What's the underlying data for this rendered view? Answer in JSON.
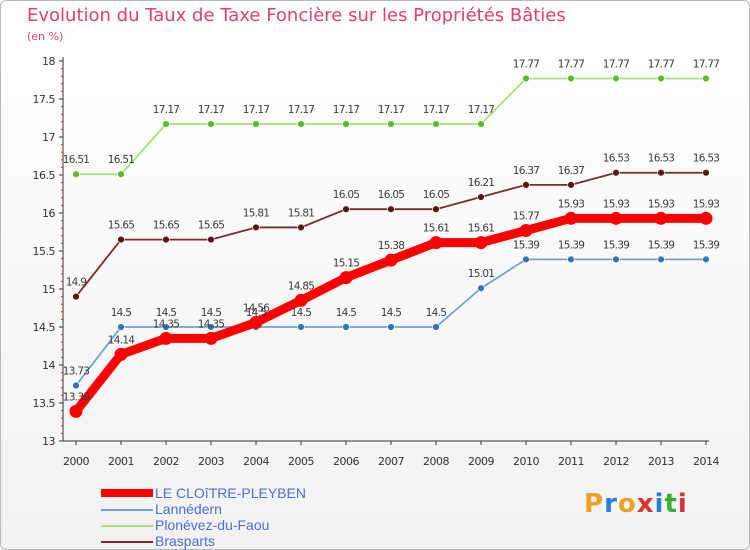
{
  "header": {
    "title": "Evolution du Taux de Taxe Foncière sur les Propriétés Bâties",
    "unit": "(en %)"
  },
  "logo": {
    "text": "Proxiti",
    "colors": [
      "#f0a020",
      "#2a7fd4",
      "#38b030",
      "#e03030"
    ]
  },
  "chart_data": {
    "type": "line",
    "title": "Evolution du Taux de Taxe Foncière sur les Propriétés Bâties",
    "ylabel": "(en %)",
    "xlabel": "",
    "ylim": [
      13,
      18
    ],
    "yticks": [
      "13",
      "13.5",
      "14",
      "14.5",
      "15",
      "15.5",
      "16",
      "16.5",
      "17",
      "17.5",
      "18"
    ],
    "categories": [
      "2000",
      "2001",
      "2002",
      "2003",
      "2004",
      "2005",
      "2006",
      "2007",
      "2008",
      "2009",
      "2010",
      "2011",
      "2012",
      "2013",
      "2014"
    ],
    "grid": false,
    "legend_position": "bottom-left",
    "series": [
      {
        "name": "LE CLOîTRE-PLEYBEN",
        "color": "#ff0000",
        "emphasis": true,
        "values": [
          13.39,
          14.14,
          14.35,
          14.35,
          14.56,
          14.85,
          15.15,
          15.38,
          15.61,
          15.61,
          15.77,
          15.93,
          15.93,
          15.93,
          15.93
        ],
        "labels": [
          "13.39",
          "14.14",
          "14.35",
          "14.35",
          "14.56",
          "14.85",
          "15.15",
          "15.38",
          "15.61",
          "15.61",
          "15.77",
          "15.93",
          "15.93",
          "15.93",
          "15.93"
        ]
      },
      {
        "name": "Lannédern",
        "color": "#6fa3d6",
        "point_color": "#2f74c0",
        "values": [
          13.73,
          14.5,
          14.5,
          14.5,
          14.5,
          14.5,
          14.5,
          14.5,
          14.5,
          15.01,
          15.39,
          15.39,
          15.39,
          15.39,
          15.39
        ],
        "labels": [
          "13.73",
          "14.5",
          "14.5",
          "14.5",
          "14.5",
          "14.5",
          "14.5",
          "14.5",
          "14.5",
          "15.01",
          "15.39",
          "15.39",
          "15.39",
          "15.39",
          "15.39"
        ]
      },
      {
        "name": "Plonévez-du-Faou",
        "color": "#a9e07a",
        "point_color": "#5fb82a",
        "values": [
          16.51,
          16.51,
          17.17,
          17.17,
          17.17,
          17.17,
          17.17,
          17.17,
          17.17,
          17.17,
          17.77,
          17.77,
          17.77,
          17.77,
          17.77
        ],
        "labels": [
          "16.51",
          "16.51",
          "17.17",
          "17.17",
          "17.17",
          "17.17",
          "17.17",
          "17.17",
          "17.17",
          "17.17",
          "17.77",
          "17.77",
          "17.77",
          "17.77",
          "17.77"
        ]
      },
      {
        "name": "Brasparts",
        "color": "#7a2b2b",
        "point_color": "#5a1515",
        "values": [
          14.9,
          15.65,
          15.65,
          15.65,
          15.81,
          15.81,
          16.05,
          16.05,
          16.05,
          16.21,
          16.37,
          16.37,
          16.53,
          16.53,
          16.53
        ],
        "labels": [
          "14.9",
          "15.65",
          "15.65",
          "15.65",
          "15.81",
          "15.81",
          "16.05",
          "16.05",
          "16.05",
          "16.21",
          "16.37",
          "16.37",
          "16.53",
          "16.53",
          "16.53"
        ]
      }
    ]
  }
}
